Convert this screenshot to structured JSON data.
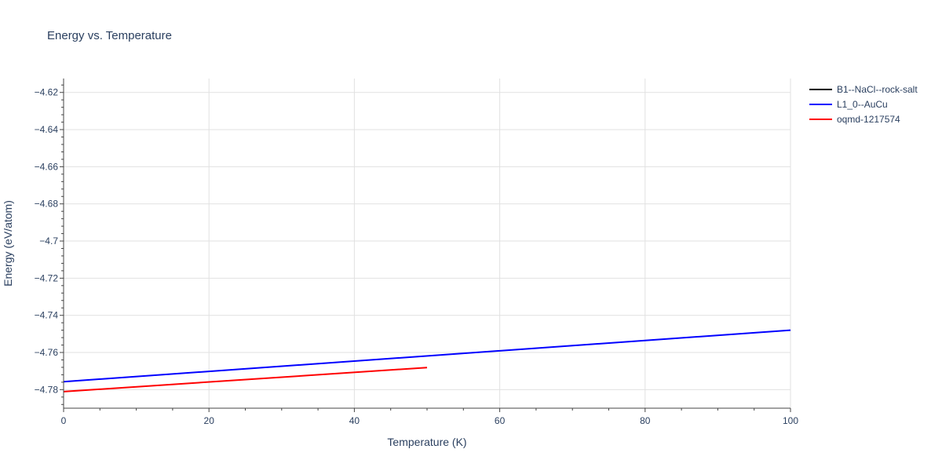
{
  "chart_data": {
    "type": "line",
    "title": "Energy vs. Temperature",
    "xlabel": "Temperature (K)",
    "ylabel": "Energy (eV/atom)",
    "xlim": [
      0,
      100
    ],
    "ylim": [
      -4.79,
      -4.6125
    ],
    "x_ticks": [
      0,
      20,
      40,
      60,
      80,
      100
    ],
    "y_ticks": [
      -4.78,
      -4.76,
      -4.74,
      -4.72,
      -4.7,
      -4.68,
      -4.66,
      -4.64,
      -4.62
    ],
    "grid": true,
    "legend_position": "top-right",
    "series": [
      {
        "name": "B1--NaCl--rock-salt",
        "color": "#000000",
        "x": [],
        "y": []
      },
      {
        "name": "L1_0--AuCu",
        "color": "#0000ff",
        "x": [
          0,
          100
        ],
        "y": [
          -4.7757,
          -4.748
        ]
      },
      {
        "name": "oqmd-1217574",
        "color": "#ff0000",
        "x": [
          0,
          50
        ],
        "y": [
          -4.7811,
          -4.7681
        ]
      }
    ]
  }
}
